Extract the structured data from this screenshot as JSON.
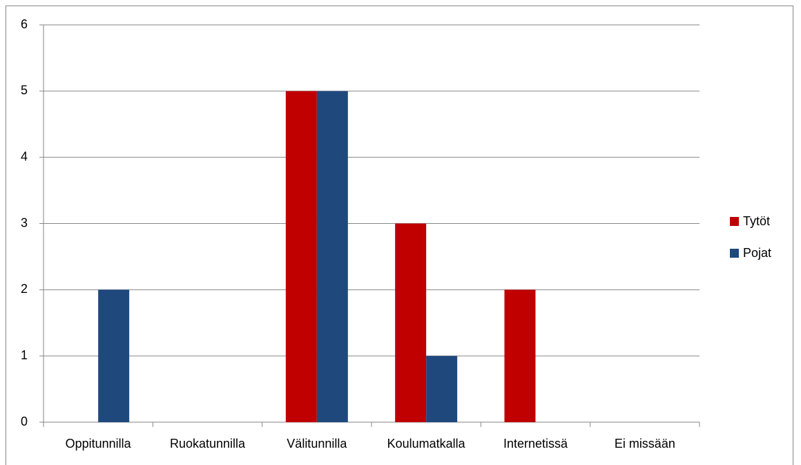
{
  "chart_data": {
    "type": "bar",
    "categories": [
      "Oppitunnilla",
      "Ruokatunnilla",
      "Välitunnilla",
      "Koulumatkalla",
      "Internetissä",
      "Ei missään"
    ],
    "series": [
      {
        "name": "Tytöt",
        "color": "#c00000",
        "values": [
          0,
          0,
          5,
          3,
          2,
          0
        ]
      },
      {
        "name": "Pojat",
        "color": "#1f497d",
        "values": [
          2,
          0,
          5,
          1,
          0,
          0
        ]
      }
    ],
    "ylim": [
      0,
      6
    ],
    "yticks": [
      0,
      1,
      2,
      3,
      4,
      5,
      6
    ],
    "grid": true,
    "legend": "right"
  }
}
